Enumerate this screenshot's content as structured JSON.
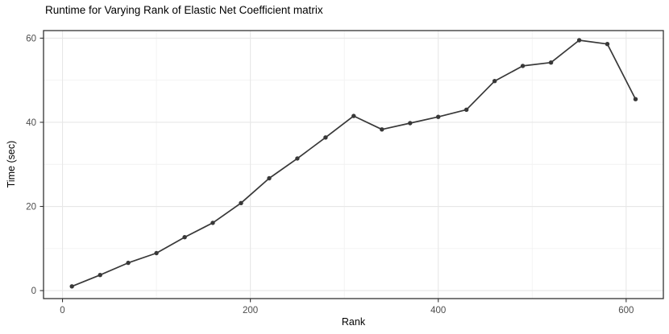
{
  "chart_data": {
    "type": "line",
    "title": "Runtime for Varying Rank of Elastic Net Coefficient matrix",
    "xlabel": "Rank",
    "ylabel": "Time (sec)",
    "x": [
      10,
      40,
      70,
      100,
      130,
      160,
      190,
      220,
      250,
      280,
      310,
      340,
      370,
      400,
      430,
      460,
      490,
      520,
      550,
      580,
      610
    ],
    "y": [
      1.0,
      3.7,
      6.6,
      8.9,
      12.7,
      16.1,
      20.8,
      26.7,
      31.4,
      36.4,
      41.5,
      38.3,
      39.8,
      41.3,
      43.0,
      49.8,
      53.4,
      54.2,
      59.5,
      58.6,
      45.5
    ],
    "x_tick_labels": [
      "0",
      "200",
      "400",
      "600"
    ],
    "x_major_ticks": [
      0,
      200,
      400,
      600
    ],
    "x_minor_gridlines": [
      100,
      300,
      500
    ],
    "y_tick_labels": [
      "0",
      "20",
      "40",
      "60"
    ],
    "y_major_ticks": [
      0,
      20,
      40,
      60
    ],
    "y_minor_gridlines": [
      10,
      30,
      50
    ],
    "xlim": [
      -20.2,
      639.6
    ],
    "ylim": [
      -1.9,
      61.8
    ],
    "grid": true,
    "legend_position": "none",
    "colors": {
      "line": "#383838",
      "point": "#383838",
      "grid_major": "#e7e7e7",
      "grid_minor": "#f2f2f2",
      "panel_border": "#333333",
      "panel_background": "#ffffff",
      "tick_mark": "#333333",
      "tick_label": "#4d4d4d",
      "text": "#000000"
    }
  }
}
